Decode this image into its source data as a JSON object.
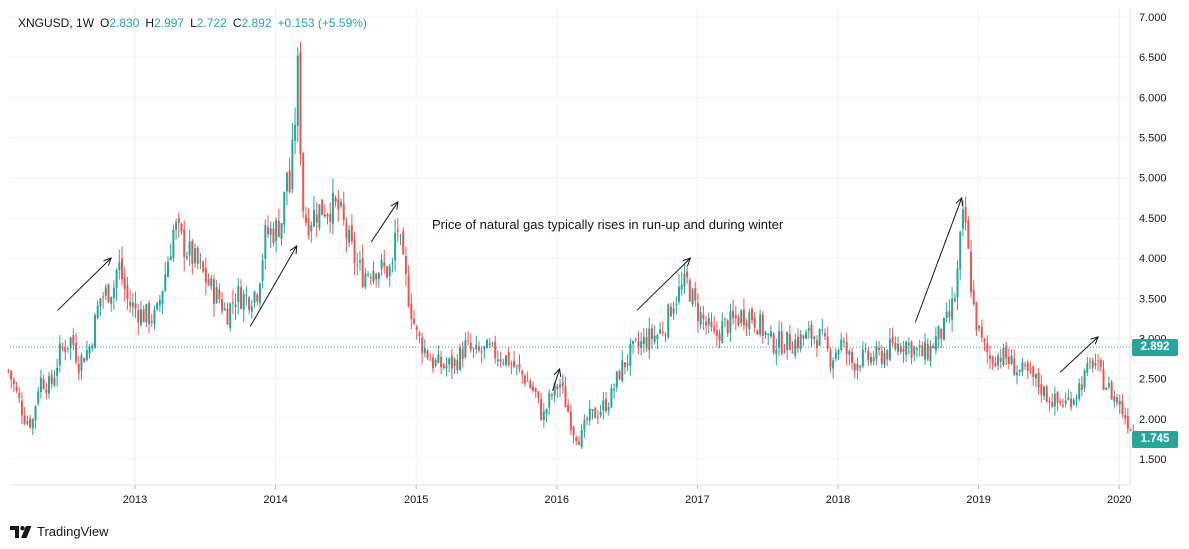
{
  "legend": {
    "symbol": "XNGUSD",
    "interval": "1W",
    "open_label": "O",
    "open": "2.830",
    "high_label": "H",
    "high": "2.997",
    "low_label": "L",
    "low": "2.722",
    "close_label": "C",
    "close": "2.892",
    "change": "+0.153 (+5.59%)"
  },
  "annotation": "Price of natural gas typically rises in run-up and during winter",
  "brand": "TradingView",
  "price_tags": {
    "reference": "2.892",
    "last": "1.745"
  },
  "colors": {
    "up": "#26a69a",
    "down": "#ef5350",
    "grid": "#f0f3fa",
    "axis_text": "#131722",
    "last_tag": "#26a69a"
  },
  "chart_data": {
    "type": "candlestick",
    "title": "XNGUSD, 1W",
    "y_axis": {
      "ticks": [
        "7.000",
        "6.500",
        "6.000",
        "5.500",
        "5.000",
        "4.500",
        "4.000",
        "3.500",
        "3.000",
        "2.500",
        "2.000",
        "1.500"
      ],
      "range": [
        1.1,
        7.05
      ],
      "position": "right"
    },
    "x_axis": {
      "ticks": [
        "2013",
        "2014",
        "2015",
        "2016",
        "2017",
        "2018",
        "2019",
        "2020"
      ],
      "range": [
        2012.1,
        2020.2
      ]
    },
    "reference_line": 2.892,
    "close_path": [
      [
        2012.1,
        2.6
      ],
      [
        2012.15,
        2.35
      ],
      [
        2012.22,
        2.0
      ],
      [
        2012.27,
        1.95
      ],
      [
        2012.32,
        2.5
      ],
      [
        2012.4,
        2.4
      ],
      [
        2012.47,
        2.85
      ],
      [
        2012.55,
        3.0
      ],
      [
        2012.6,
        2.7
      ],
      [
        2012.68,
        2.9
      ],
      [
        2012.75,
        3.5
      ],
      [
        2012.85,
        3.65
      ],
      [
        2012.88,
        3.95
      ],
      [
        2012.95,
        3.45
      ],
      [
        2013.05,
        3.3
      ],
      [
        2013.15,
        3.25
      ],
      [
        2013.22,
        3.85
      ],
      [
        2013.28,
        4.4
      ],
      [
        2013.35,
        4.15
      ],
      [
        2013.45,
        3.9
      ],
      [
        2013.55,
        3.6
      ],
      [
        2013.6,
        3.5
      ],
      [
        2013.65,
        3.3
      ],
      [
        2013.72,
        3.55
      ],
      [
        2013.8,
        3.5
      ],
      [
        2013.87,
        3.6
      ],
      [
        2013.93,
        4.3
      ],
      [
        2014.0,
        4.35
      ],
      [
        2014.05,
        4.5
      ],
      [
        2014.08,
        5.1
      ],
      [
        2014.1,
        4.85
      ],
      [
        2014.13,
        5.5
      ],
      [
        2014.16,
        6.4
      ],
      [
        2014.19,
        4.7
      ],
      [
        2014.22,
        4.45
      ],
      [
        2014.3,
        4.6
      ],
      [
        2014.38,
        4.65
      ],
      [
        2014.45,
        4.6
      ],
      [
        2014.52,
        4.2
      ],
      [
        2014.58,
        3.9
      ],
      [
        2014.62,
        3.8
      ],
      [
        2014.7,
        3.9
      ],
      [
        2014.77,
        3.85
      ],
      [
        2014.83,
        3.85
      ],
      [
        2014.86,
        4.5
      ],
      [
        2014.9,
        3.95
      ],
      [
        2014.95,
        3.5
      ],
      [
        2015.0,
        3.05
      ],
      [
        2015.05,
        2.9
      ],
      [
        2015.12,
        2.7
      ],
      [
        2015.2,
        2.65
      ],
      [
        2015.28,
        2.7
      ],
      [
        2015.35,
        2.9
      ],
      [
        2015.42,
        2.8
      ],
      [
        2015.5,
        2.85
      ],
      [
        2015.58,
        2.8
      ],
      [
        2015.65,
        2.75
      ],
      [
        2015.72,
        2.6
      ],
      [
        2015.78,
        2.5
      ],
      [
        2015.85,
        2.3
      ],
      [
        2015.9,
        2.0
      ],
      [
        2015.95,
        2.25
      ],
      [
        2016.02,
        2.45
      ],
      [
        2016.08,
        2.1
      ],
      [
        2016.12,
        1.85
      ],
      [
        2016.17,
        1.75
      ],
      [
        2016.22,
        2.0
      ],
      [
        2016.3,
        2.1
      ],
      [
        2016.38,
        2.25
      ],
      [
        2016.45,
        2.6
      ],
      [
        2016.52,
        2.8
      ],
      [
        2016.58,
        2.9
      ],
      [
        2016.65,
        3.0
      ],
      [
        2016.72,
        3.05
      ],
      [
        2016.78,
        3.2
      ],
      [
        2016.82,
        3.45
      ],
      [
        2016.88,
        3.6
      ],
      [
        2016.93,
        3.7
      ],
      [
        2016.98,
        3.4
      ],
      [
        2017.05,
        3.2
      ],
      [
        2017.12,
        3.0
      ],
      [
        2017.18,
        3.15
      ],
      [
        2017.25,
        3.2
      ],
      [
        2017.32,
        3.3
      ],
      [
        2017.38,
        3.3
      ],
      [
        2017.45,
        3.15
      ],
      [
        2017.52,
        2.95
      ],
      [
        2017.6,
        2.95
      ],
      [
        2017.68,
        2.95
      ],
      [
        2017.75,
        3.0
      ],
      [
        2017.82,
        3.05
      ],
      [
        2017.88,
        3.0
      ],
      [
        2017.95,
        2.75
      ],
      [
        2018.02,
        2.95
      ],
      [
        2018.1,
        2.7
      ],
      [
        2018.18,
        2.75
      ],
      [
        2018.25,
        2.75
      ],
      [
        2018.32,
        2.8
      ],
      [
        2018.4,
        2.9
      ],
      [
        2018.48,
        2.95
      ],
      [
        2018.55,
        2.85
      ],
      [
        2018.6,
        2.8
      ],
      [
        2018.65,
        2.85
      ],
      [
        2018.7,
        3.0
      ],
      [
        2018.75,
        3.1
      ],
      [
        2018.8,
        3.3
      ],
      [
        2018.84,
        3.6
      ],
      [
        2018.87,
        4.2
      ],
      [
        2018.9,
        4.6
      ],
      [
        2018.93,
        3.95
      ],
      [
        2018.97,
        3.3
      ],
      [
        2019.02,
        2.95
      ],
      [
        2019.08,
        2.75
      ],
      [
        2019.15,
        2.8
      ],
      [
        2019.2,
        2.75
      ],
      [
        2019.28,
        2.6
      ],
      [
        2019.35,
        2.55
      ],
      [
        2019.42,
        2.45
      ],
      [
        2019.48,
        2.3
      ],
      [
        2019.55,
        2.2
      ],
      [
        2019.62,
        2.2
      ],
      [
        2019.68,
        2.3
      ],
      [
        2019.73,
        2.45
      ],
      [
        2019.78,
        2.6
      ],
      [
        2019.82,
        2.75
      ],
      [
        2019.86,
        2.55
      ],
      [
        2019.9,
        2.45
      ],
      [
        2019.95,
        2.3
      ],
      [
        2020.0,
        2.2
      ],
      [
        2020.05,
        2.0
      ],
      [
        2020.1,
        1.85
      ],
      [
        2020.15,
        1.745
      ]
    ],
    "trend_arrows": [
      [
        [
          2012.45,
          3.35
        ],
        [
          2012.83,
          4.0
        ]
      ],
      [
        [
          2013.82,
          3.15
        ],
        [
          2014.15,
          4.15
        ]
      ],
      [
        [
          2014.68,
          4.2
        ],
        [
          2014.87,
          4.7
        ]
      ],
      [
        [
          2015.97,
          2.35
        ],
        [
          2016.02,
          2.62
        ]
      ],
      [
        [
          2016.57,
          3.35
        ],
        [
          2016.95,
          4.0
        ]
      ],
      [
        [
          2018.55,
          3.2
        ],
        [
          2018.88,
          4.75
        ]
      ],
      [
        [
          2019.58,
          2.58
        ],
        [
          2019.85,
          3.02
        ]
      ]
    ]
  }
}
